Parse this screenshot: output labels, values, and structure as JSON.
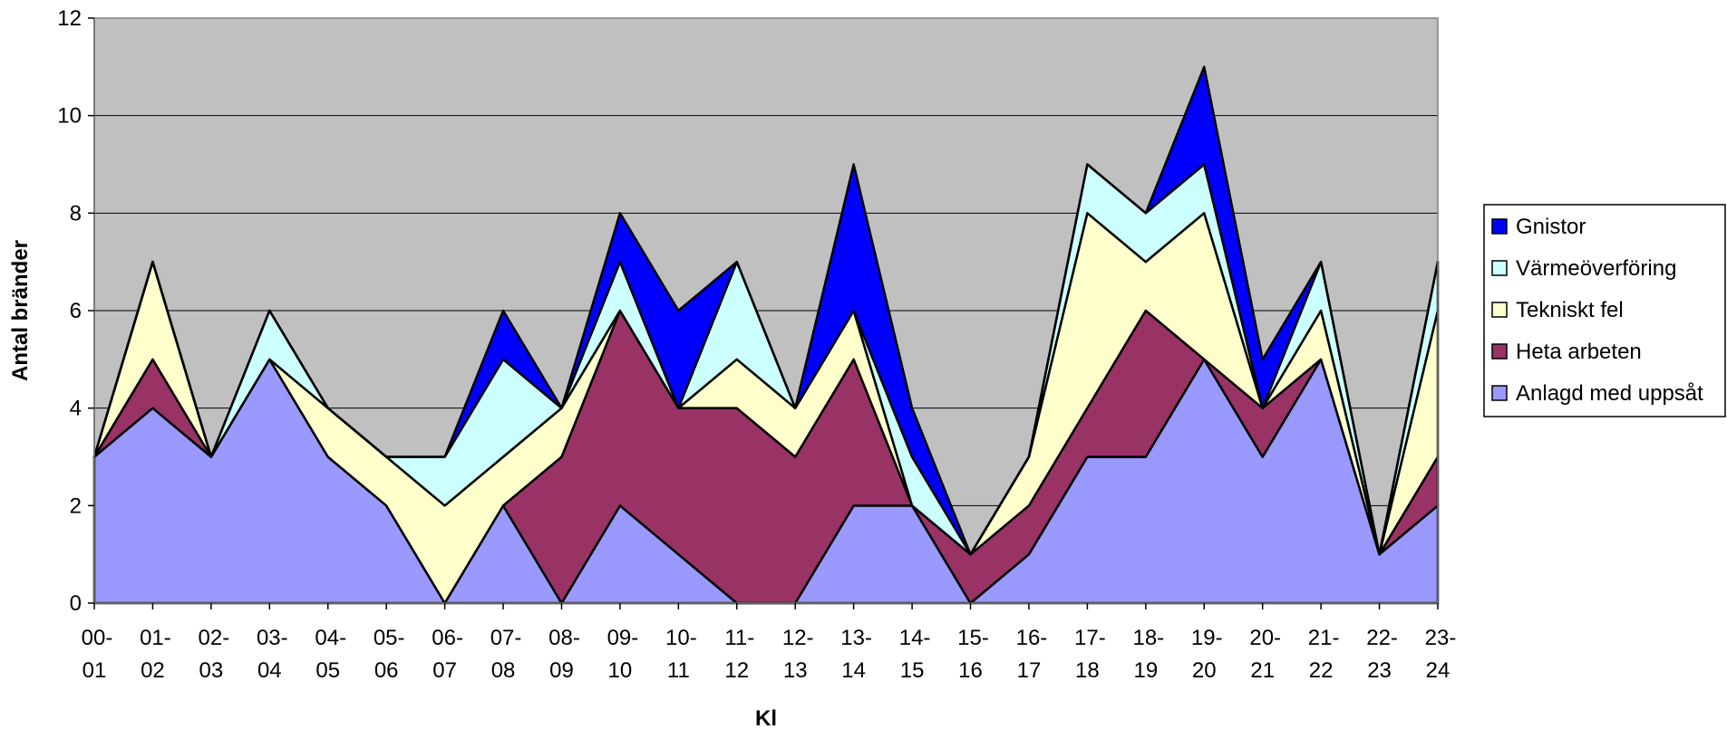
{
  "chart_data": {
    "type": "area",
    "stacked": true,
    "x_categories": [
      [
        "00-",
        "01"
      ],
      [
        "01-",
        "02"
      ],
      [
        "02-",
        "03"
      ],
      [
        "03-",
        "04"
      ],
      [
        "04-",
        "05"
      ],
      [
        "05-",
        "06"
      ],
      [
        "06-",
        "07"
      ],
      [
        "07-",
        "08"
      ],
      [
        "08-",
        "09"
      ],
      [
        "09-",
        "10"
      ],
      [
        "10-",
        "11"
      ],
      [
        "11-",
        "12"
      ],
      [
        "12-",
        "13"
      ],
      [
        "13-",
        "14"
      ],
      [
        "14-",
        "15"
      ],
      [
        "15-",
        "16"
      ],
      [
        "16-",
        "17"
      ],
      [
        "17-",
        "18"
      ],
      [
        "18-",
        "19"
      ],
      [
        "19-",
        "20"
      ],
      [
        "20-",
        "21"
      ],
      [
        "21-",
        "22"
      ],
      [
        "22-",
        "23"
      ],
      [
        "23-",
        "24"
      ]
    ],
    "xlabel": "Kl",
    "ylabel": "Antal bränder",
    "ylim": [
      0,
      12
    ],
    "yticks": [
      0,
      2,
      4,
      6,
      8,
      10,
      12
    ],
    "grid": true,
    "plot_background": "#c0c0c0",
    "legend_position": "right",
    "series": [
      {
        "name": "Anlagd med uppsåt",
        "color": "#9999ff",
        "values": [
          3,
          4,
          3,
          5,
          3,
          2,
          0,
          2,
          0,
          2,
          1,
          0,
          0,
          2,
          2,
          0,
          1,
          3,
          3,
          5,
          3,
          5,
          1,
          2
        ]
      },
      {
        "name": "Heta arbeten",
        "color": "#993366",
        "values": [
          0,
          1,
          0,
          0,
          0,
          0,
          0,
          0,
          3,
          4,
          3,
          4,
          3,
          3,
          0,
          1,
          1,
          1,
          3,
          0,
          1,
          0,
          0,
          1
        ]
      },
      {
        "name": "Tekniskt fel",
        "color": "#ffffcc",
        "values": [
          0,
          2,
          0,
          0,
          1,
          1,
          2,
          1,
          1,
          0,
          0,
          1,
          1,
          1,
          0,
          0,
          1,
          4,
          1,
          3,
          0,
          1,
          0,
          3
        ]
      },
      {
        "name": "Värmeöverföring",
        "color": "#ccffff",
        "values": [
          0,
          0,
          0,
          1,
          0,
          0,
          1,
          2,
          0,
          1,
          0,
          2,
          0,
          0,
          1,
          0,
          0,
          1,
          1,
          1,
          0,
          1,
          0,
          1
        ]
      },
      {
        "name": "Gnistor",
        "color": "#0000ff",
        "values": [
          0,
          0,
          0,
          0,
          0,
          0,
          0,
          1,
          0,
          1,
          2,
          0,
          0,
          3,
          1,
          0,
          0,
          0,
          0,
          2,
          1,
          0,
          0,
          0
        ]
      }
    ],
    "legend_order": [
      "Gnistor",
      "Värmeöverföring",
      "Tekniskt fel",
      "Heta arbeten",
      "Anlagd med uppsåt"
    ]
  }
}
